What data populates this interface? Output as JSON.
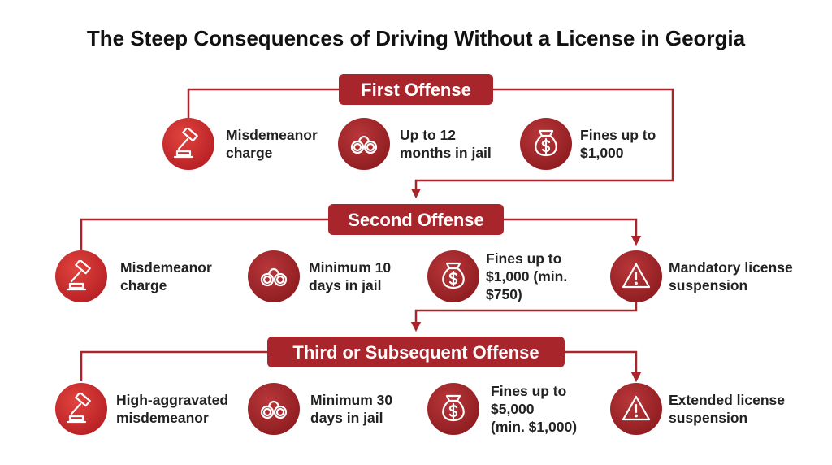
{
  "title": "The Steep Consequences of Driving Without a License in Georgia",
  "sections": [
    {
      "label": "First Offense",
      "items": [
        {
          "lines": [
            "Misdemeanor",
            "charge"
          ]
        },
        {
          "lines": [
            "Up to 12",
            "months in jail"
          ]
        },
        {
          "lines": [
            "Fines up to",
            "$1,000"
          ]
        }
      ]
    },
    {
      "label": "Second Offense",
      "items": [
        {
          "lines": [
            "Misdemeanor",
            "charge"
          ]
        },
        {
          "lines": [
            "Minimum 10",
            "days in jail"
          ]
        },
        {
          "lines": [
            "Fines up to",
            "$1,000 (min.",
            "$750)"
          ]
        },
        {
          "lines": [
            "Mandatory license",
            "suspension"
          ]
        }
      ]
    },
    {
      "label": "Third or Subsequent Offense",
      "items": [
        {
          "lines": [
            "High-aggravated",
            "misdemeanor"
          ]
        },
        {
          "lines": [
            "Minimum 30",
            "days in jail"
          ]
        },
        {
          "lines": [
            "Fines up to",
            "$5,000",
            "(min. $1,000)"
          ]
        },
        {
          "lines": [
            "Extended license",
            "suspension"
          ]
        }
      ]
    }
  ]
}
